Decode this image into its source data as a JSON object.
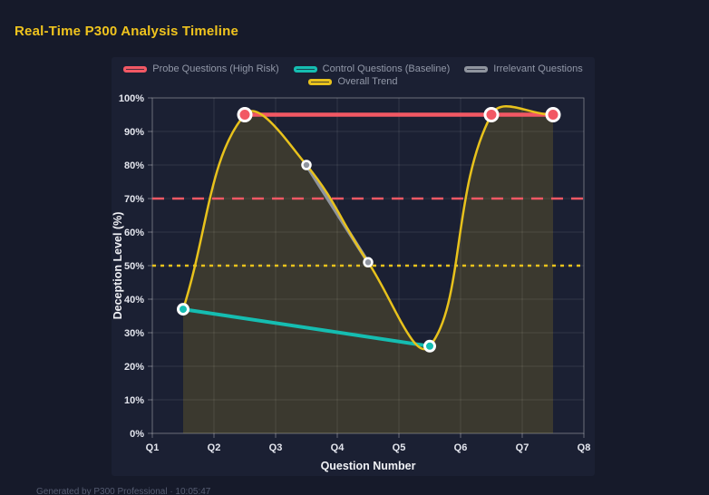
{
  "title": "Real-Time P300 Analysis Timeline",
  "footer": "Generated by P300 Professional · 10:05:47",
  "colors": {
    "page_bg": "#161a2a",
    "panel_bg": "#1b2033",
    "title": "#f0c41e",
    "grid": "rgba(255,255,255,0.10)",
    "border": "rgba(255,255,255,0.28)",
    "tick": "rgba(255,255,255,0.35)",
    "axis_text": "#e4e6ee",
    "axis_title_text": "#f0f1f5",
    "legend_text": "#9298a8",
    "point_ring": "#ffffff",
    "footer_text": "#565d72",
    "probe": "#f25864",
    "control": "#15bdb1",
    "irrelevant": "#8f949e",
    "trend": "#e8c21c"
  },
  "chart_data": {
    "type": "line",
    "title": "Real-Time P300 Analysis Timeline",
    "xlabel": "Question Number",
    "ylabel": "Deception Level (%)",
    "x_ticks": [
      "Q1",
      "Q2",
      "Q3",
      "Q4",
      "Q5",
      "Q6",
      "Q7",
      "Q8"
    ],
    "x_range": [
      1,
      8
    ],
    "y_ticks": [
      "0%",
      "10%",
      "20%",
      "30%",
      "40%",
      "50%",
      "60%",
      "70%",
      "80%",
      "90%",
      "100%"
    ],
    "ylim": [
      0,
      100
    ],
    "grid": true,
    "legend_position": "top",
    "series": [
      {
        "name": "Probe Questions (High Risk)",
        "color": "#f25864",
        "points": [
          [
            2.5,
            95
          ],
          [
            6.5,
            95
          ],
          [
            7.5,
            95
          ]
        ],
        "line_width": 4.5,
        "point_radius": 7,
        "point_ring_width": 3,
        "smooth": false,
        "fill": false
      },
      {
        "name": "Control Questions (Baseline)",
        "color": "#15bdb1",
        "points": [
          [
            1.5,
            37
          ],
          [
            5.5,
            26
          ]
        ],
        "line_width": 4,
        "point_radius": 5.5,
        "point_ring_width": 3,
        "smooth": false,
        "fill": false
      },
      {
        "name": "Irrelevant Questions",
        "color": "#8f949e",
        "points": [
          [
            3.5,
            80
          ],
          [
            4.5,
            51
          ]
        ],
        "line_width": 4,
        "point_radius": 4.5,
        "point_ring_width": 2.5,
        "smooth": false,
        "fill": false
      },
      {
        "name": "Overall Trend",
        "color": "#e8c21c",
        "points": [
          [
            1.5,
            37
          ],
          [
            2.5,
            95
          ],
          [
            3.5,
            80
          ],
          [
            4.5,
            51
          ],
          [
            5.5,
            26
          ],
          [
            6.5,
            95
          ],
          [
            7.5,
            95
          ]
        ],
        "line_width": 2.5,
        "point_radius": 0,
        "point_ring_width": 0,
        "smooth": true,
        "fill": true,
        "fill_opacity": 0.16
      }
    ],
    "thresholds": [
      {
        "value": 70,
        "color": "#f25864",
        "dash": [
          13,
          9
        ],
        "width": 2.5
      },
      {
        "value": 50,
        "color": "#e8c21c",
        "dash": [
          4,
          5
        ],
        "width": 2.5
      }
    ],
    "legend_rows": [
      [
        0,
        1,
        2
      ],
      [
        3
      ]
    ]
  }
}
